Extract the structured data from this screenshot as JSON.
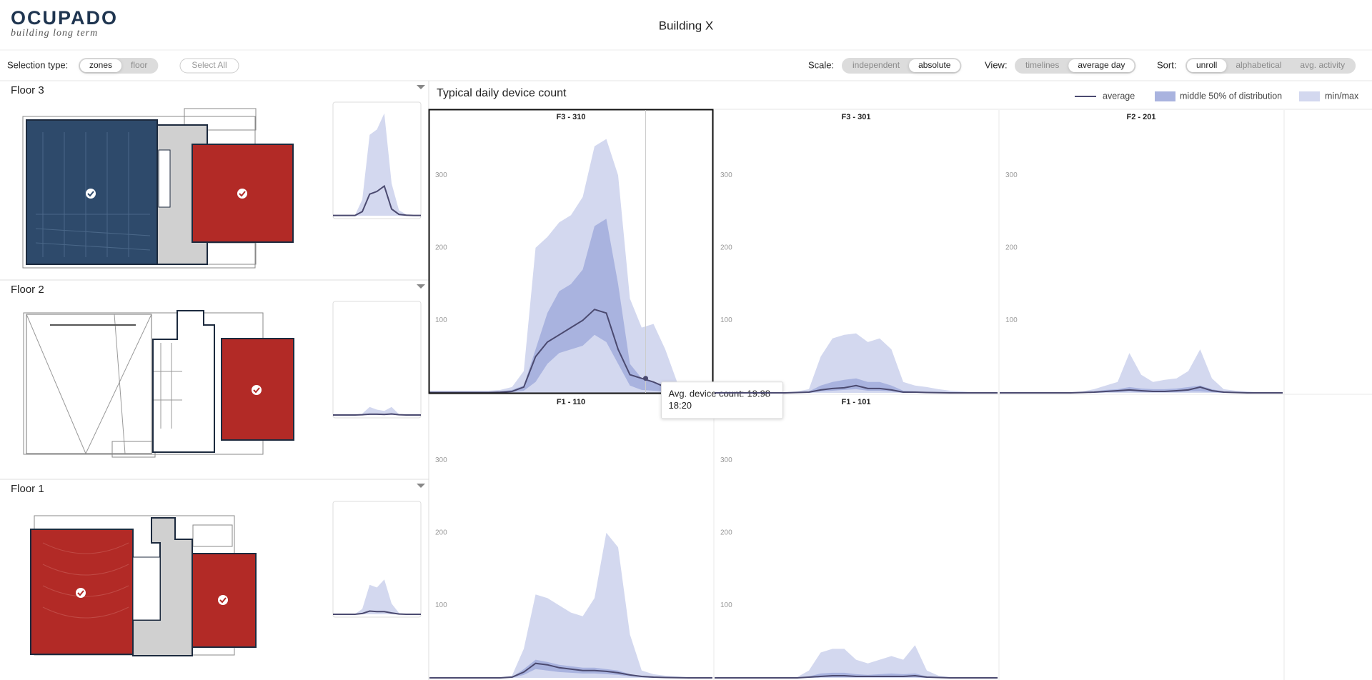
{
  "header": {
    "logo": "OCUPADO",
    "tagline": "building long term",
    "title": "Building X"
  },
  "toolbar": {
    "selection_type": {
      "label": "Selection type:",
      "options": [
        "zones",
        "floor"
      ],
      "active": 0
    },
    "select_all": "Select All",
    "scale": {
      "label": "Scale:",
      "options": [
        "independent",
        "absolute"
      ],
      "active": 1
    },
    "view": {
      "label": "View:",
      "options": [
        "timelines",
        "average day"
      ],
      "active": 1
    },
    "sort": {
      "label": "Sort:",
      "options": [
        "unroll",
        "alphabetical",
        "avg. activity"
      ],
      "active": 0
    }
  },
  "floors": [
    {
      "name": "Floor 3",
      "chart": {
        "x": [
          0,
          2,
          4,
          6,
          8,
          10,
          12,
          14,
          16,
          18,
          20,
          22,
          24
        ],
        "ylim": [
          0,
          400
        ],
        "max": [
          2,
          2,
          2,
          2,
          60,
          300,
          320,
          380,
          120,
          20,
          5,
          2,
          2
        ],
        "average": [
          1,
          1,
          1,
          1,
          15,
          80,
          90,
          110,
          25,
          5,
          2,
          1,
          1
        ]
      }
    },
    {
      "name": "Floor 2",
      "chart": {
        "x": [
          0,
          2,
          4,
          6,
          8,
          10,
          12,
          14,
          16,
          18,
          20,
          22,
          24
        ],
        "ylim": [
          0,
          400
        ],
        "max": [
          1,
          1,
          1,
          1,
          5,
          30,
          20,
          15,
          30,
          3,
          1,
          1,
          1
        ],
        "average": [
          0,
          0,
          0,
          0,
          1,
          3,
          3,
          2,
          4,
          1,
          0,
          0,
          0
        ]
      }
    },
    {
      "name": "Floor 1",
      "chart": {
        "x": [
          0,
          2,
          4,
          6,
          8,
          10,
          12,
          14,
          16,
          18,
          20,
          22,
          24
        ],
        "ylim": [
          0,
          400
        ],
        "max": [
          1,
          1,
          1,
          1,
          20,
          110,
          100,
          130,
          40,
          5,
          1,
          1,
          1
        ],
        "average": [
          0,
          0,
          0,
          0,
          3,
          12,
          10,
          10,
          5,
          1,
          0,
          0,
          0
        ]
      }
    }
  ],
  "chart_data": {
    "type": "area",
    "title": "Typical daily device count",
    "legend": [
      {
        "name": "average",
        "color": "#4b4a70"
      },
      {
        "name": "middle 50% of distribution",
        "color": "#a9b3df"
      },
      {
        "name": "min/max",
        "color": "#d3d8ef"
      }
    ],
    "xlim": [
      0,
      24
    ],
    "ylim": [
      0,
      390
    ],
    "yticks": [
      100,
      200,
      300
    ],
    "x": [
      0,
      1,
      2,
      3,
      4,
      5,
      6,
      7,
      8,
      9,
      10,
      11,
      12,
      13,
      14,
      15,
      16,
      17,
      18,
      19,
      20,
      21,
      22,
      23,
      24
    ],
    "panels": [
      {
        "title": "F3 - 310",
        "selected": true,
        "max": [
          3,
          3,
          3,
          3,
          3,
          3,
          4,
          8,
          30,
          200,
          215,
          235,
          245,
          270,
          340,
          350,
          300,
          130,
          90,
          95,
          60,
          15,
          5,
          3,
          3
        ],
        "p75": [
          1,
          1,
          1,
          1,
          1,
          1,
          2,
          4,
          10,
          60,
          110,
          140,
          150,
          170,
          230,
          240,
          150,
          40,
          20,
          15,
          10,
          4,
          2,
          1,
          1
        ],
        "p25": [
          0,
          0,
          0,
          0,
          0,
          0,
          0,
          1,
          3,
          15,
          40,
          55,
          60,
          65,
          80,
          70,
          40,
          10,
          4,
          3,
          2,
          1,
          0,
          0,
          0
        ],
        "average": [
          0.5,
          0.5,
          0.5,
          0.5,
          0.5,
          0.5,
          1,
          2,
          8,
          50,
          70,
          80,
          90,
          100,
          115,
          110,
          60,
          25,
          20,
          15,
          8,
          3,
          1,
          0.5,
          0.5
        ],
        "tooltip": {
          "label": "Avg. device count:",
          "value": 19.98,
          "time": "18:20"
        }
      },
      {
        "title": "F3 - 301",
        "max": [
          1,
          1,
          1,
          1,
          1,
          1,
          1,
          2,
          5,
          50,
          75,
          80,
          82,
          70,
          75,
          60,
          15,
          10,
          8,
          5,
          3,
          2,
          1,
          1,
          1
        ],
        "p75": [
          0,
          0,
          0,
          0,
          0,
          0,
          0,
          1,
          2,
          10,
          15,
          18,
          20,
          15,
          15,
          10,
          3,
          2,
          1,
          1,
          0,
          0,
          0,
          0,
          0
        ],
        "p25": [
          0,
          0,
          0,
          0,
          0,
          0,
          0,
          0,
          0,
          2,
          3,
          4,
          5,
          3,
          3,
          2,
          0,
          0,
          0,
          0,
          0,
          0,
          0,
          0,
          0
        ],
        "average": [
          0,
          0,
          0,
          0,
          0,
          0,
          0,
          0.5,
          1,
          4,
          6,
          7,
          10,
          6,
          6,
          4,
          1,
          1,
          0.5,
          0.3,
          0,
          0,
          0,
          0,
          0
        ]
      },
      {
        "title": "F2 - 201",
        "max": [
          1,
          1,
          1,
          1,
          1,
          1,
          1,
          2,
          5,
          10,
          15,
          55,
          25,
          15,
          18,
          20,
          30,
          60,
          20,
          5,
          3,
          2,
          1,
          1,
          1
        ],
        "p75": [
          0,
          0,
          0,
          0,
          0,
          0,
          0,
          1,
          2,
          4,
          5,
          8,
          6,
          5,
          5,
          6,
          8,
          10,
          5,
          2,
          1,
          0,
          0,
          0,
          0
        ],
        "p25": [
          0,
          0,
          0,
          0,
          0,
          0,
          0,
          0,
          0,
          1,
          1,
          2,
          1,
          1,
          1,
          1,
          2,
          2,
          1,
          0,
          0,
          0,
          0,
          0,
          0
        ],
        "average": [
          0,
          0,
          0,
          0,
          0,
          0,
          0,
          0.5,
          1,
          2,
          3,
          4,
          3,
          2,
          2,
          3,
          4,
          8,
          3,
          1,
          0.5,
          0,
          0,
          0,
          0
        ]
      },
      {
        "title": "F1 - 110",
        "max": [
          1,
          1,
          1,
          1,
          1,
          1,
          1,
          3,
          40,
          115,
          110,
          100,
          90,
          85,
          110,
          200,
          180,
          60,
          10,
          5,
          3,
          2,
          1,
          1,
          1
        ],
        "p75": [
          0,
          0,
          0,
          0,
          0,
          0,
          0,
          1,
          12,
          25,
          22,
          18,
          16,
          14,
          14,
          12,
          10,
          5,
          2,
          1,
          0,
          0,
          0,
          0,
          0
        ],
        "p25": [
          0,
          0,
          0,
          0,
          0,
          0,
          0,
          0,
          4,
          12,
          10,
          8,
          7,
          6,
          6,
          5,
          4,
          2,
          1,
          0,
          0,
          0,
          0,
          0,
          0
        ],
        "average": [
          0,
          0,
          0,
          0,
          0,
          0,
          0,
          1,
          8,
          20,
          18,
          14,
          12,
          10,
          10,
          9,
          7,
          4,
          2,
          1,
          0.5,
          0.3,
          0,
          0,
          0
        ]
      },
      {
        "title": "F1 - 101",
        "max": [
          0,
          0,
          0,
          0,
          0,
          0,
          0,
          1,
          10,
          35,
          40,
          40,
          25,
          20,
          25,
          30,
          25,
          45,
          10,
          3,
          1,
          0,
          0,
          0,
          0
        ],
        "p75": [
          0,
          0,
          0,
          0,
          0,
          0,
          0,
          0,
          2,
          6,
          7,
          7,
          5,
          4,
          5,
          6,
          5,
          6,
          2,
          1,
          0,
          0,
          0,
          0,
          0
        ],
        "p25": [
          0,
          0,
          0,
          0,
          0,
          0,
          0,
          0,
          0,
          1,
          1,
          1,
          1,
          1,
          1,
          1,
          1,
          1,
          0,
          0,
          0,
          0,
          0,
          0,
          0
        ],
        "average": [
          0,
          0,
          0,
          0,
          0,
          0,
          0,
          0,
          1,
          2,
          3,
          3,
          2,
          2,
          2,
          2,
          2,
          3,
          1,
          0.5,
          0,
          0,
          0,
          0,
          0
        ]
      }
    ]
  }
}
